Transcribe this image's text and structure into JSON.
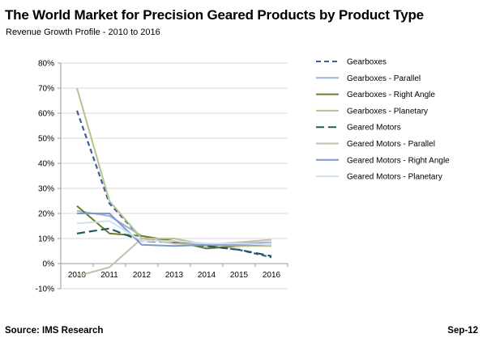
{
  "header": {
    "title": "The World Market for Precision Geared Products by Product Type",
    "subtitle": "Revenue Growth Profile - 2010 to 2016"
  },
  "footer": {
    "source": "Source: IMS Research",
    "date": "Sep-12"
  },
  "chart_data": {
    "type": "line",
    "title": "The World Market for Precision Geared Products by Product Type",
    "subtitle": "Revenue Growth Profile - 2010 to 2016",
    "xlabel": "",
    "ylabel": "",
    "x": [
      "2010",
      "2011",
      "2012",
      "2013",
      "2014",
      "2015",
      "2016"
    ],
    "ylim": [
      -10,
      80
    ],
    "yticks": [
      -10,
      0,
      10,
      20,
      30,
      40,
      50,
      60,
      70,
      80
    ],
    "ytick_labels": [
      "-10%",
      "0%",
      "10%",
      "20%",
      "30%",
      "40%",
      "50%",
      "60%",
      "70%",
      "80%"
    ],
    "grid": "horizontal",
    "legend_position": "right",
    "series": [
      {
        "name": "Gearboxes",
        "color": "#3a5f9a",
        "dash": "dash",
        "values": [
          61,
          24,
          10,
          9,
          7,
          5.5,
          2.5
        ]
      },
      {
        "name": "Gearboxes - Parallel",
        "color": "#9db4d4",
        "dash": "solid",
        "values": [
          21,
          19,
          11,
          8.5,
          7,
          8,
          8.5
        ]
      },
      {
        "name": "Gearboxes - Right Angle",
        "color": "#6b7d2a",
        "dash": "solid",
        "values": [
          23,
          12,
          11,
          9,
          6,
          7,
          7.5
        ]
      },
      {
        "name": "Gearboxes - Planetary",
        "color": "#b9c192",
        "dash": "solid",
        "values": [
          70,
          25,
          10,
          10,
          7.5,
          7,
          7
        ]
      },
      {
        "name": "Geared Motors",
        "color": "#245a5a",
        "dash": "longdash",
        "values": [
          12,
          14,
          9,
          8.5,
          7,
          5.5,
          3
        ]
      },
      {
        "name": "Geared Motors - Parallel",
        "color": "#c7bda9",
        "dash": "solid",
        "values": [
          -5,
          -1.5,
          10,
          8,
          7.5,
          8.5,
          9.5
        ]
      },
      {
        "name": "Geared Motors - Right Angle",
        "color": "#7f97c9",
        "dash": "solid",
        "values": [
          20,
          20,
          7.5,
          7,
          7.5,
          7.5,
          7.5
        ]
      },
      {
        "name": "Geared Motors - Planetary",
        "color": "#cfe0ef",
        "dash": "solid",
        "values": [
          16,
          17,
          9,
          9,
          8,
          8,
          7.5
        ]
      }
    ]
  }
}
